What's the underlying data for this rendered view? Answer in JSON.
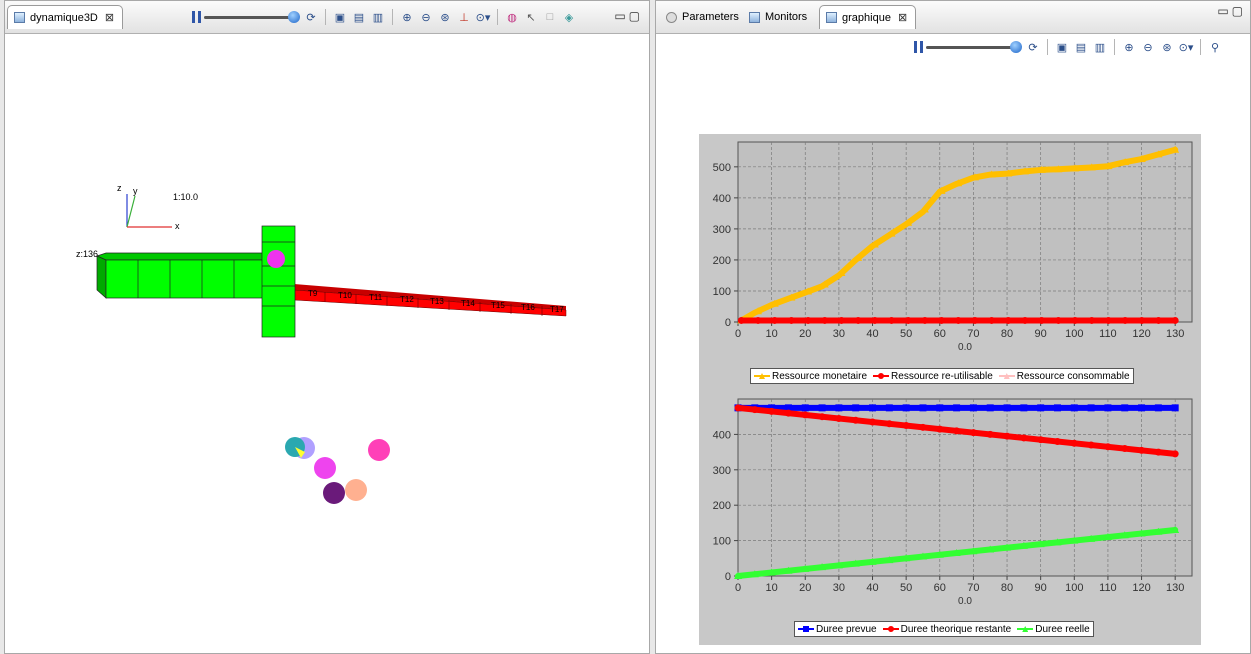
{
  "left_panel": {
    "tab_label": "dynamique3D",
    "scene": {
      "axes": {
        "x": "x",
        "y": "y",
        "z": "z"
      },
      "scale_label": "1:10.0",
      "z_label": "z:136",
      "task_labels": [
        "T9",
        "T10",
        "T11",
        "T12",
        "T13",
        "T14",
        "T15",
        "T16",
        "T17"
      ]
    }
  },
  "right_panel": {
    "tabs": [
      {
        "label": "Parameters",
        "icon": "gear-icon"
      },
      {
        "label": "Monitors",
        "icon": "monitor-icon"
      },
      {
        "label": "graphique",
        "icon": "chart-view-icon",
        "active": true
      }
    ]
  },
  "colors": {
    "orange": "#ffbf00",
    "red": "#ff0000",
    "pink": "#ffc0c0",
    "blue": "#0000ff",
    "green": "#33ff33",
    "plot_bg": "#c0c0c0",
    "block_green": "#00ff00",
    "block_red": "#ff0000"
  },
  "chart_data": [
    {
      "type": "line",
      "xlabel": "0.0",
      "xlim": [
        0,
        135
      ],
      "ylim": [
        0,
        580
      ],
      "xticks": [
        "0",
        "10",
        "20",
        "30",
        "40",
        "50",
        "60",
        "70",
        "80",
        "90",
        "100",
        "110",
        "120",
        "130"
      ],
      "yticks": [
        "0",
        "100",
        "200",
        "300",
        "400",
        "500"
      ],
      "grid": true,
      "legend_position": "bottom",
      "series": [
        {
          "name": "Ressource monetaire",
          "color": "#ffbf00",
          "marker": "triangle",
          "x": [
            1,
            5,
            10,
            15,
            20,
            25,
            30,
            35,
            40,
            45,
            50,
            55,
            60,
            65,
            70,
            75,
            80,
            85,
            90,
            95,
            100,
            105,
            110,
            115,
            120,
            125,
            130
          ],
          "y": [
            5,
            30,
            55,
            75,
            95,
            115,
            150,
            200,
            245,
            280,
            315,
            355,
            420,
            445,
            465,
            475,
            478,
            485,
            490,
            492,
            495,
            498,
            502,
            515,
            525,
            540,
            555
          ]
        },
        {
          "name": "Ressource re-utilisable",
          "color": "#ff0000",
          "marker": "circle",
          "x": [
            1,
            130
          ],
          "y": [
            5,
            5
          ]
        },
        {
          "name": "Ressource consommable",
          "color": "#ffc0c0",
          "marker": "triangle",
          "x": [],
          "y": []
        }
      ]
    },
    {
      "type": "line",
      "xlabel": "0.0",
      "xlim": [
        0,
        135
      ],
      "ylim": [
        0,
        500
      ],
      "xticks": [
        "0",
        "10",
        "20",
        "30",
        "40",
        "50",
        "60",
        "70",
        "80",
        "90",
        "100",
        "110",
        "120",
        "130"
      ],
      "yticks": [
        "0",
        "100",
        "200",
        "300",
        "400"
      ],
      "grid": true,
      "legend_position": "bottom",
      "series": [
        {
          "name": "Duree prevue",
          "color": "#0000ff",
          "marker": "square",
          "x": [
            0,
            130
          ],
          "y": [
            475,
            475
          ]
        },
        {
          "name": "Duree theorique restante",
          "color": "#ff0000",
          "marker": "circle",
          "x": [
            0,
            130
          ],
          "y": [
            475,
            345
          ]
        },
        {
          "name": "Duree reelle",
          "color": "#33ff33",
          "marker": "triangle",
          "x": [
            0,
            130
          ],
          "y": [
            0,
            130
          ]
        }
      ]
    }
  ]
}
